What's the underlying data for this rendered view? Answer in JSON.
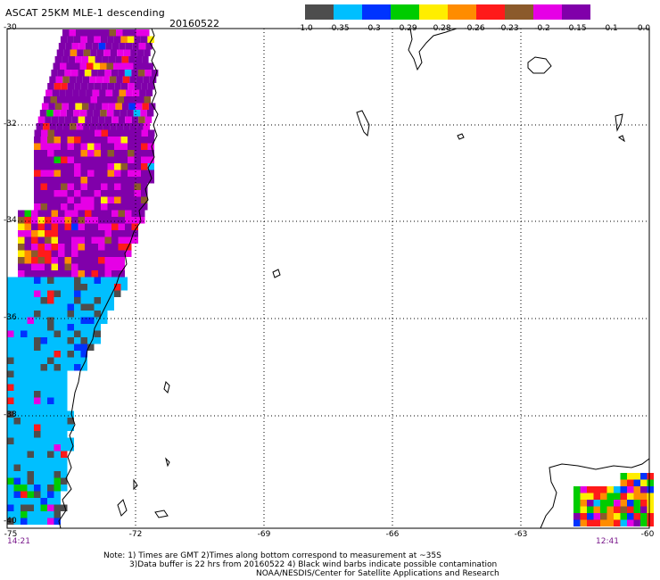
{
  "header": {
    "title": "ASCAT 25KM MLE-1 descending",
    "date": "20160522"
  },
  "colorbar": {
    "colors": [
      "#4d4d4d",
      "#00bfff",
      "#0033ff",
      "#00cc00",
      "#ffee00",
      "#ff8c00",
      "#ff1a1a",
      "#8b5a2b",
      "#e600e6",
      "#8000aa"
    ],
    "labels": [
      "-1.0",
      "-0.35",
      "-0.3",
      "-0.29",
      "-0.28",
      "-0.26",
      "-0.23",
      "-0.2",
      "-0.15",
      "-0.1",
      "0.0"
    ]
  },
  "map": {
    "lat_labels": [
      "-30",
      "-32",
      "-34",
      "-36",
      "-38",
      "-40"
    ],
    "lon_labels": [
      "-75",
      "-72",
      "-69",
      "-66",
      "-63",
      "-60"
    ],
    "time_left": "14:21",
    "time_right": "12:41"
  },
  "notes": {
    "line1": "Note: 1) Times are GMT 2)Times along bottom correspond to measurement at ~35S",
    "line2": "3)Data buffer is 22 hrs from 20160522 4) Black wind barbs indicate possible contamination",
    "line3": "NOAA/NESDIS/Center for Satellite Applications and Research"
  }
}
